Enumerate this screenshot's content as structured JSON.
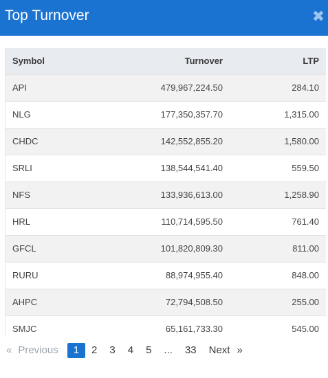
{
  "header": {
    "title": "Top Turnover",
    "close_icon": "close-icon"
  },
  "table": {
    "columns": [
      "Symbol",
      "Turnover",
      "LTP"
    ],
    "rows": [
      {
        "symbol": "API",
        "turnover": "479,967,224.50",
        "ltp": "284.10"
      },
      {
        "symbol": "NLG",
        "turnover": "177,350,357.70",
        "ltp": "1,315.00"
      },
      {
        "symbol": "CHDC",
        "turnover": "142,552,855.20",
        "ltp": "1,580.00"
      },
      {
        "symbol": "SRLI",
        "turnover": "138,544,541.40",
        "ltp": "559.50"
      },
      {
        "symbol": "NFS",
        "turnover": "133,936,613.00",
        "ltp": "1,258.90"
      },
      {
        "symbol": "HRL",
        "turnover": "110,714,595.50",
        "ltp": "761.40"
      },
      {
        "symbol": "GFCL",
        "turnover": "101,820,809.30",
        "ltp": "811.00"
      },
      {
        "symbol": "RURU",
        "turnover": "88,974,955.40",
        "ltp": "848.00"
      },
      {
        "symbol": "AHPC",
        "turnover": "72,794,508.50",
        "ltp": "255.00"
      },
      {
        "symbol": "SMJC",
        "turnover": "65,161,733.30",
        "ltp": "545.00"
      }
    ]
  },
  "pagination": {
    "prev_chevron": "«",
    "prev_label": "Previous",
    "pages": [
      "1",
      "2",
      "3",
      "4",
      "5"
    ],
    "ellipsis": "...",
    "last_page": "33",
    "next_label": "Next",
    "next_chevron": "»",
    "active_page": "1"
  },
  "colors": {
    "accent": "#1a73d1",
    "header_bg": "#e8ebef",
    "stripe": "#f2f2f2"
  }
}
